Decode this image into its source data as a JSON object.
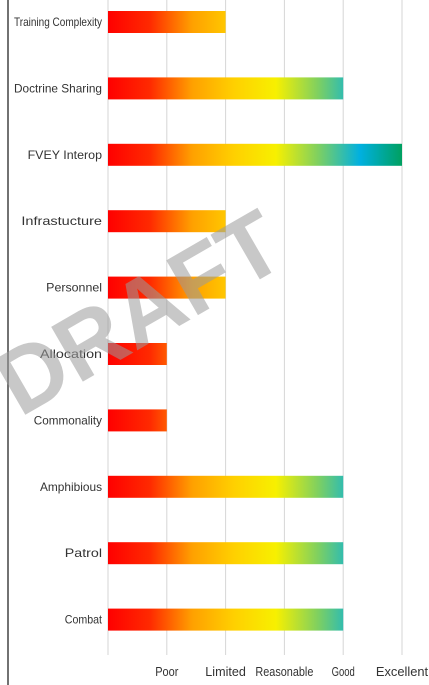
{
  "chart_data": {
    "type": "bar",
    "orientation": "horizontal",
    "categories": [
      "Training Complexity",
      "Doctrine Sharing",
      "FVEY Interop",
      "Infrastucture",
      "Personnel",
      "Allocation",
      "Commonality",
      "Amphibious",
      "Patrol",
      "Combat"
    ],
    "values": [
      2,
      4,
      5,
      2,
      2,
      1,
      1,
      4,
      4,
      4
    ],
    "x_tick_labels": [
      "Poor",
      "Limited",
      "Reasonable",
      "Good",
      "Excellent"
    ],
    "xlim": [
      0,
      5
    ],
    "grid": true,
    "legend": "none",
    "gradient_colors": [
      "#ff0000",
      "#ff2a00",
      "#ffa000",
      "#ffd000",
      "#f7f000",
      "#7fd060",
      "#00b0e0",
      "#00a060"
    ]
  },
  "watermark": {
    "text": "DRAFT"
  }
}
